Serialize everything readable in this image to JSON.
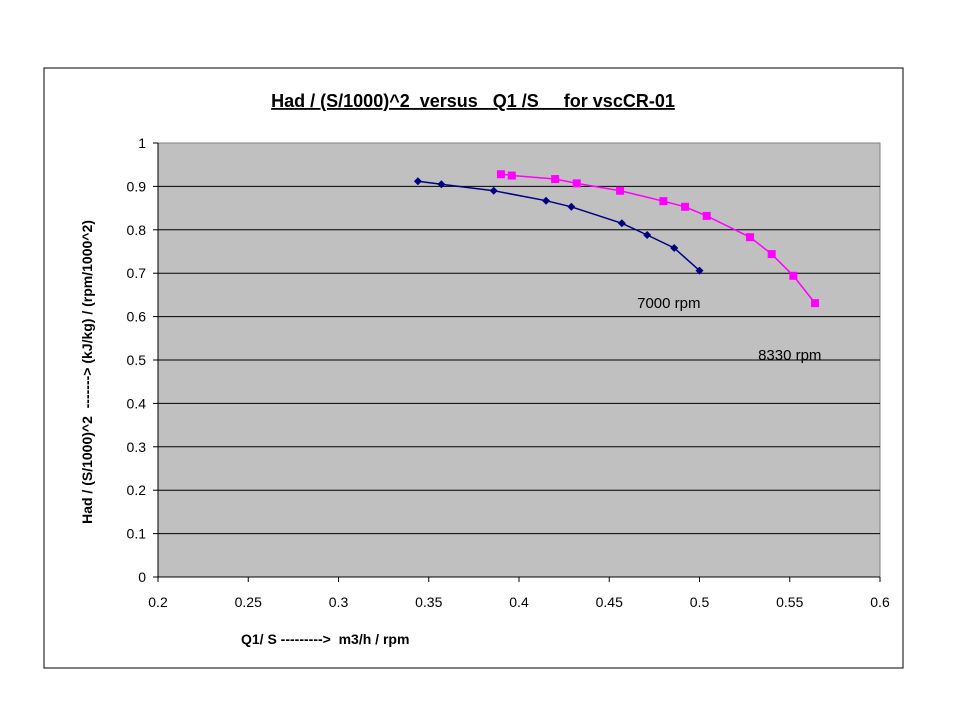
{
  "chart_data": {
    "type": "line",
    "title": "Had / (S/1000)^2  versus   Q1 /S     for vscCR-01",
    "xlabel": "Q1/ S --------->  m3/h / rpm",
    "ylabel": "Had / (S/1000)^2  -------> (kJ/kg) / (rpm/1000^2)",
    "xlim": [
      0.2,
      0.6
    ],
    "ylim": [
      0,
      1
    ],
    "x_ticks": [
      "0.2",
      "0.25",
      "0.3",
      "0.35",
      "0.4",
      "0.45",
      "0.5",
      "0.55",
      "0.6"
    ],
    "y_ticks": [
      "0",
      "0.1",
      "0.2",
      "0.3",
      "0.4",
      "0.5",
      "0.6",
      "0.7",
      "0.8",
      "0.9",
      "1"
    ],
    "grid": true,
    "plot_background": "#c0c0c0",
    "series": [
      {
        "name": "7000 rpm",
        "color": "#000080",
        "marker": "diamond",
        "x": [
          0.344,
          0.357,
          0.386,
          0.415,
          0.429,
          0.457,
          0.471,
          0.486,
          0.5
        ],
        "y": [
          0.912,
          0.905,
          0.89,
          0.867,
          0.853,
          0.815,
          0.788,
          0.758,
          0.706
        ]
      },
      {
        "name": "8330 rpm",
        "color": "#ff00ff",
        "marker": "square",
        "x": [
          0.39,
          0.396,
          0.42,
          0.432,
          0.456,
          0.48,
          0.492,
          0.504,
          0.528,
          0.54,
          0.552,
          0.564
        ],
        "y": [
          0.928,
          0.925,
          0.917,
          0.907,
          0.89,
          0.866,
          0.853,
          0.832,
          0.783,
          0.744,
          0.694,
          0.631
        ]
      }
    ],
    "annotations": [
      {
        "text": "7000 rpm",
        "x": 0.483,
        "y": 0.62
      },
      {
        "text": "8330 rpm",
        "x": 0.55,
        "y": 0.5
      }
    ]
  }
}
